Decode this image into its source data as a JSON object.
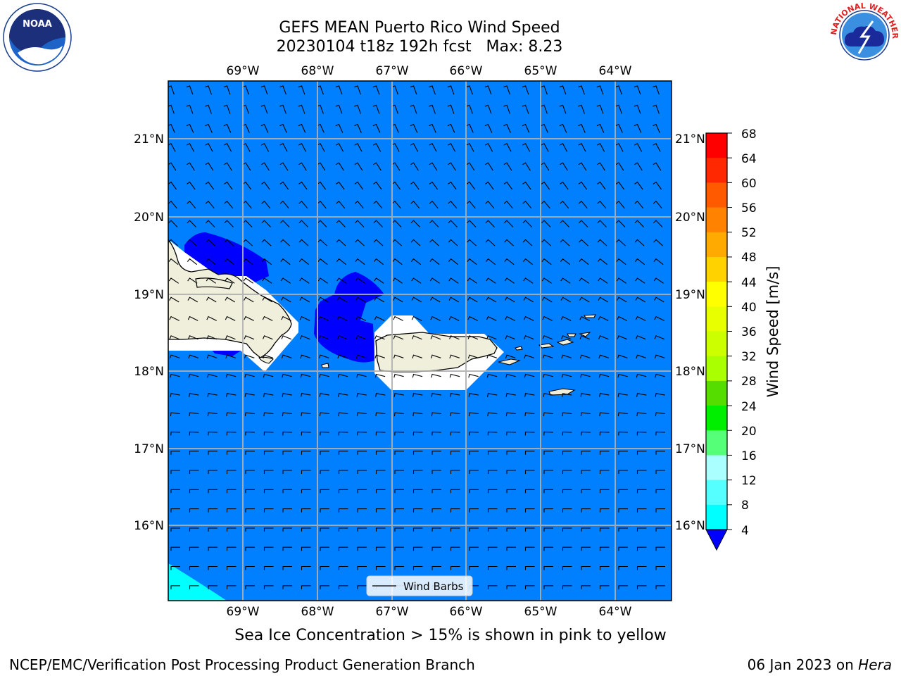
{
  "header": {
    "title_line1": "GEFS MEAN Puerto Rico Wind Speed",
    "title_line2": "20230104 t18z 192h fcst   Max: 8.23"
  },
  "map": {
    "lon_labels": [
      "69°W",
      "68°W",
      "67°W",
      "66°W",
      "65°W",
      "64°W"
    ],
    "lat_labels": [
      "21°N",
      "20°N",
      "19°N",
      "18°N",
      "17°N",
      "16°N"
    ],
    "legend_label": "Wind Barbs",
    "ocean_color": "#0080ff",
    "low_wind_color": "#0000ff",
    "land_color": "#efefdb"
  },
  "colorbar": {
    "label": "Wind Speed [m/s]",
    "ticks": [
      "68",
      "64",
      "60",
      "56",
      "52",
      "48",
      "44",
      "40",
      "36",
      "32",
      "28",
      "24",
      "20",
      "16",
      "12",
      "8",
      "4"
    ],
    "colors_top_to_bottom": [
      "#ff0000",
      "#ff2800",
      "#ff5a00",
      "#ff8200",
      "#ffaa00",
      "#ffd200",
      "#ffff00",
      "#e8ff00",
      "#ccff00",
      "#aaff00",
      "#55dd00",
      "#00ee00",
      "#55ff77",
      "#aaffff",
      "#55ffff",
      "#00ffff",
      "#0080ff"
    ],
    "extend_color": "#0000ff"
  },
  "footer": {
    "subtitle": "Sea Ice Concentration > 15% is shown in pink to yellow",
    "credit_left": "NCEP/EMC/Verification Post Processing Product Generation Branch",
    "credit_date": "06 Jan 2023 on ",
    "credit_host": "Hera"
  },
  "logos": {
    "noaa_text": "NOAA",
    "nws_text": "NATIONAL WEATHER SERVICE"
  }
}
